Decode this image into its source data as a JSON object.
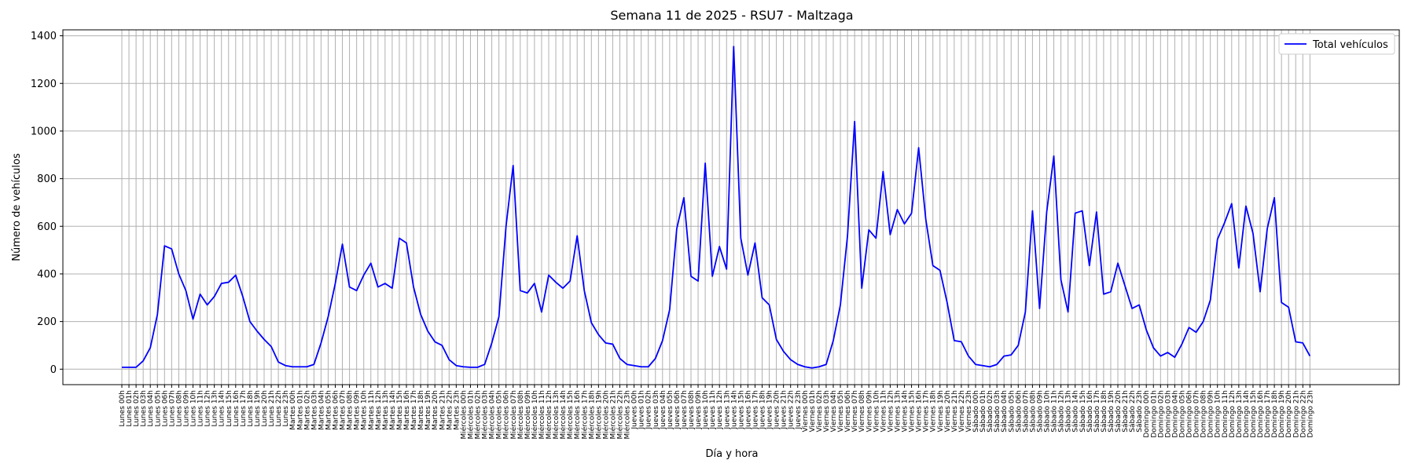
{
  "chart_data": {
    "type": "line",
    "title": "Semana 11 de 2025 - RSU7 - Maltzaga",
    "xlabel": "Día y hora",
    "ylabel": "Número de vehículos",
    "ylim": [
      -65,
      1425
    ],
    "yticks": [
      0,
      200,
      400,
      600,
      800,
      1000,
      1200,
      1400
    ],
    "grid": true,
    "legend": "top-right",
    "days": [
      "Lunes",
      "Martes",
      "Miércoles",
      "Jueves",
      "Viernes",
      "Sábado",
      "Domingo"
    ],
    "hours": [
      "00h",
      "01h",
      "02h",
      "03h",
      "04h",
      "05h",
      "06h",
      "07h",
      "08h",
      "09h",
      "10h",
      "11h",
      "12h",
      "13h",
      "14h",
      "15h",
      "16h",
      "17h",
      "18h",
      "19h",
      "20h",
      "21h",
      "22h",
      "23h"
    ],
    "series": [
      {
        "name": "Total vehículos",
        "color": "#0000ff",
        "values": [
          8,
          8,
          8,
          35,
          90,
          230,
          518,
          505,
          400,
          330,
          210,
          315,
          270,
          305,
          360,
          365,
          395,
          305,
          200,
          160,
          125,
          95,
          30,
          15,
          10,
          10,
          10,
          20,
          110,
          220,
          360,
          525,
          345,
          330,
          395,
          445,
          345,
          360,
          340,
          550,
          530,
          345,
          230,
          160,
          115,
          100,
          40,
          15,
          10,
          8,
          8,
          20,
          110,
          220,
          600,
          855,
          330,
          320,
          360,
          240,
          395,
          365,
          340,
          370,
          560,
          330,
          195,
          145,
          110,
          105,
          45,
          20,
          15,
          10,
          10,
          45,
          120,
          250,
          590,
          720,
          390,
          370,
          865,
          390,
          515,
          420,
          1355,
          550,
          395,
          530,
          300,
          270,
          125,
          75,
          40,
          20,
          10,
          5,
          10,
          20,
          120,
          270,
          560,
          1040,
          340,
          585,
          550,
          830,
          565,
          670,
          610,
          655,
          930,
          630,
          435,
          415,
          280,
          120,
          115,
          55,
          20,
          15,
          10,
          20,
          55,
          60,
          100,
          240,
          665,
          255,
          660,
          895,
          375,
          240,
          655,
          665,
          435,
          660,
          315,
          325,
          445,
          350,
          255,
          270,
          165,
          90,
          55,
          70,
          50,
          105,
          175,
          155,
          200,
          290,
          545,
          615,
          695,
          425,
          685,
          570,
          325,
          590,
          720,
          280,
          260,
          115,
          110,
          55
        ]
      }
    ]
  }
}
